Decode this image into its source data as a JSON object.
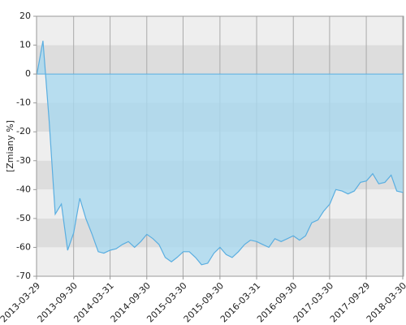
{
  "chart_data": {
    "type": "area",
    "y_label": "[Zmiany %]",
    "x": [
      "2013-03-31",
      "2013-04-30",
      "2013-05-31",
      "2013-06-30",
      "2013-07-31",
      "2013-08-31",
      "2013-09-30",
      "2013-10-31",
      "2013-11-30",
      "2013-12-31",
      "2014-01-31",
      "2014-02-28",
      "2014-03-31",
      "2014-04-30",
      "2014-05-31",
      "2014-06-30",
      "2014-07-31",
      "2014-08-31",
      "2014-09-30",
      "2014-10-31",
      "2014-11-30",
      "2014-12-31",
      "2015-01-31",
      "2015-02-28",
      "2015-03-31",
      "2015-04-30",
      "2015-05-31",
      "2015-06-30",
      "2015-07-31",
      "2015-08-31",
      "2015-09-30",
      "2015-10-31",
      "2015-11-30",
      "2015-12-31",
      "2016-01-31",
      "2016-02-29",
      "2016-03-31",
      "2016-04-30",
      "2016-05-31",
      "2016-06-30",
      "2016-07-31",
      "2016-08-31",
      "2016-09-30",
      "2016-10-31",
      "2016-11-30",
      "2016-12-31",
      "2017-01-31",
      "2017-02-28",
      "2017-03-31",
      "2017-04-30",
      "2017-05-31",
      "2017-06-30",
      "2017-07-31",
      "2017-08-31",
      "2017-09-30",
      "2017-10-31",
      "2017-11-30",
      "2017-12-31",
      "2018-01-31",
      "2018-02-28",
      "2018-03-31"
    ],
    "values": [
      0,
      11.5,
      -16.5,
      -48.5,
      -45,
      -61,
      -55,
      -43,
      -50,
      -55.5,
      -61.5,
      -62,
      -61,
      -60.5,
      -59,
      -58,
      -60,
      -58,
      -55.5,
      -57,
      -59,
      -63.5,
      -65,
      -63.5,
      -61.5,
      -61.5,
      -63.5,
      -66,
      -65.5,
      -62,
      -60,
      -62.5,
      -63.5,
      -61.5,
      -59,
      -57.5,
      -58,
      -59,
      -60,
      -57,
      -58,
      -57,
      -56,
      -57.5,
      -56,
      -51.5,
      -50.5,
      -47.5,
      -45,
      -40,
      -40.5,
      -41.5,
      -40.5,
      -37.5,
      -37,
      -34.5,
      -38,
      -37.5,
      -35,
      -40.5,
      -41
    ],
    "color": "#5aaee0",
    "fill_color": "#a9d8ef",
    "band_colors": [
      "#eeeeee",
      "#dddddd"
    ],
    "grid": true,
    "xlim": [
      "2013-03-29",
      "2018-04-03"
    ],
    "xticks": [
      "2013-03-29",
      "2013-09-30",
      "2014-03-31",
      "2014-09-30",
      "2015-03-30",
      "2015-09-30",
      "2016-03-31",
      "2016-09-30",
      "2017-03-30",
      "2017-09-29",
      "2018-03-30"
    ],
    "ylim": [
      -70,
      20
    ],
    "yticks": [
      20,
      10,
      0,
      -10,
      -20,
      -30,
      -40,
      -50,
      -60,
      -70
    ]
  }
}
